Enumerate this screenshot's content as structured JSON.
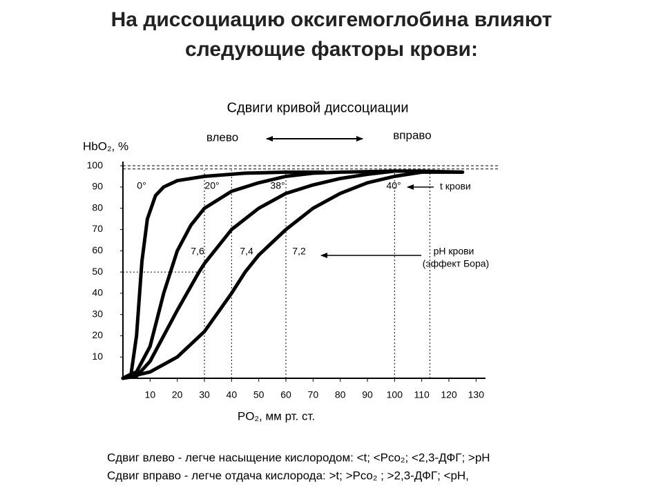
{
  "title_lines": [
    "На диссоциацию оксигемоглобина влияют",
    "следующие факторы крови:"
  ],
  "chart_data": {
    "type": "line",
    "title": "Сдвиги кривой диссоциации",
    "y_label": "HbO₂, %",
    "x_label": "PO₂, мм рт. ст.",
    "xlim": [
      0,
      135
    ],
    "ylim": [
      0,
      102
    ],
    "xticks": [
      10,
      20,
      30,
      40,
      50,
      60,
      70,
      80,
      90,
      100,
      110,
      120,
      130
    ],
    "yticks": [
      10,
      20,
      30,
      40,
      50,
      60,
      70,
      80,
      90,
      100
    ],
    "color": "#000000",
    "series": [
      {
        "name": "0°",
        "x": [
          0,
          3,
          5,
          7,
          9,
          12,
          15,
          20,
          30,
          45,
          60,
          74
        ],
        "values": [
          0,
          2,
          20,
          55,
          75,
          86,
          90,
          93,
          95,
          96.5,
          97,
          97
        ]
      },
      {
        "name": "20°",
        "ph_label": "7,6",
        "x": [
          0,
          5,
          10,
          15,
          20,
          25,
          30,
          40,
          50,
          60,
          70,
          80,
          100
        ],
        "values": [
          0,
          3,
          15,
          40,
          60,
          72,
          80,
          88,
          92,
          95,
          96.5,
          97,
          97.5
        ]
      },
      {
        "name": "38°",
        "ph_label": "7,4",
        "x": [
          0,
          5,
          10,
          15,
          20,
          28,
          30,
          40,
          50,
          60,
          70,
          80,
          90,
          100,
          110,
          125
        ],
        "values": [
          0,
          1,
          8,
          20,
          32,
          50,
          54,
          70,
          80,
          87,
          91,
          94,
          96,
          97.5,
          97.5,
          97
        ]
      },
      {
        "name": "40°",
        "ph_label": "7,2",
        "x": [
          0,
          10,
          20,
          30,
          40,
          45,
          50,
          60,
          70,
          80,
          90,
          100,
          110,
          125
        ],
        "values": [
          0,
          3,
          10,
          22,
          40,
          50,
          58,
          70,
          80,
          87,
          92,
          95,
          97,
          97
        ]
      }
    ],
    "reference_lines": {
      "x": [
        30,
        40,
        60,
        100,
        113
      ],
      "y": [
        50
      ],
      "dashed_y": [
        100,
        98.5
      ]
    },
    "annotations": {
      "left": "влево",
      "right": "вправо",
      "temperature": "t крови",
      "ph": "pH крови",
      "bohr": "(эффект Бора)"
    }
  },
  "notes": [
    "Сдвиг влево - легче насыщение кислородом: <t; <Pco₂; <2,3-ДФГ; >pH",
    "Сдвиг вправо - легче отдача кислорода: >t; >Pco₂ ; >2,3-ДФГ; <pH,"
  ]
}
